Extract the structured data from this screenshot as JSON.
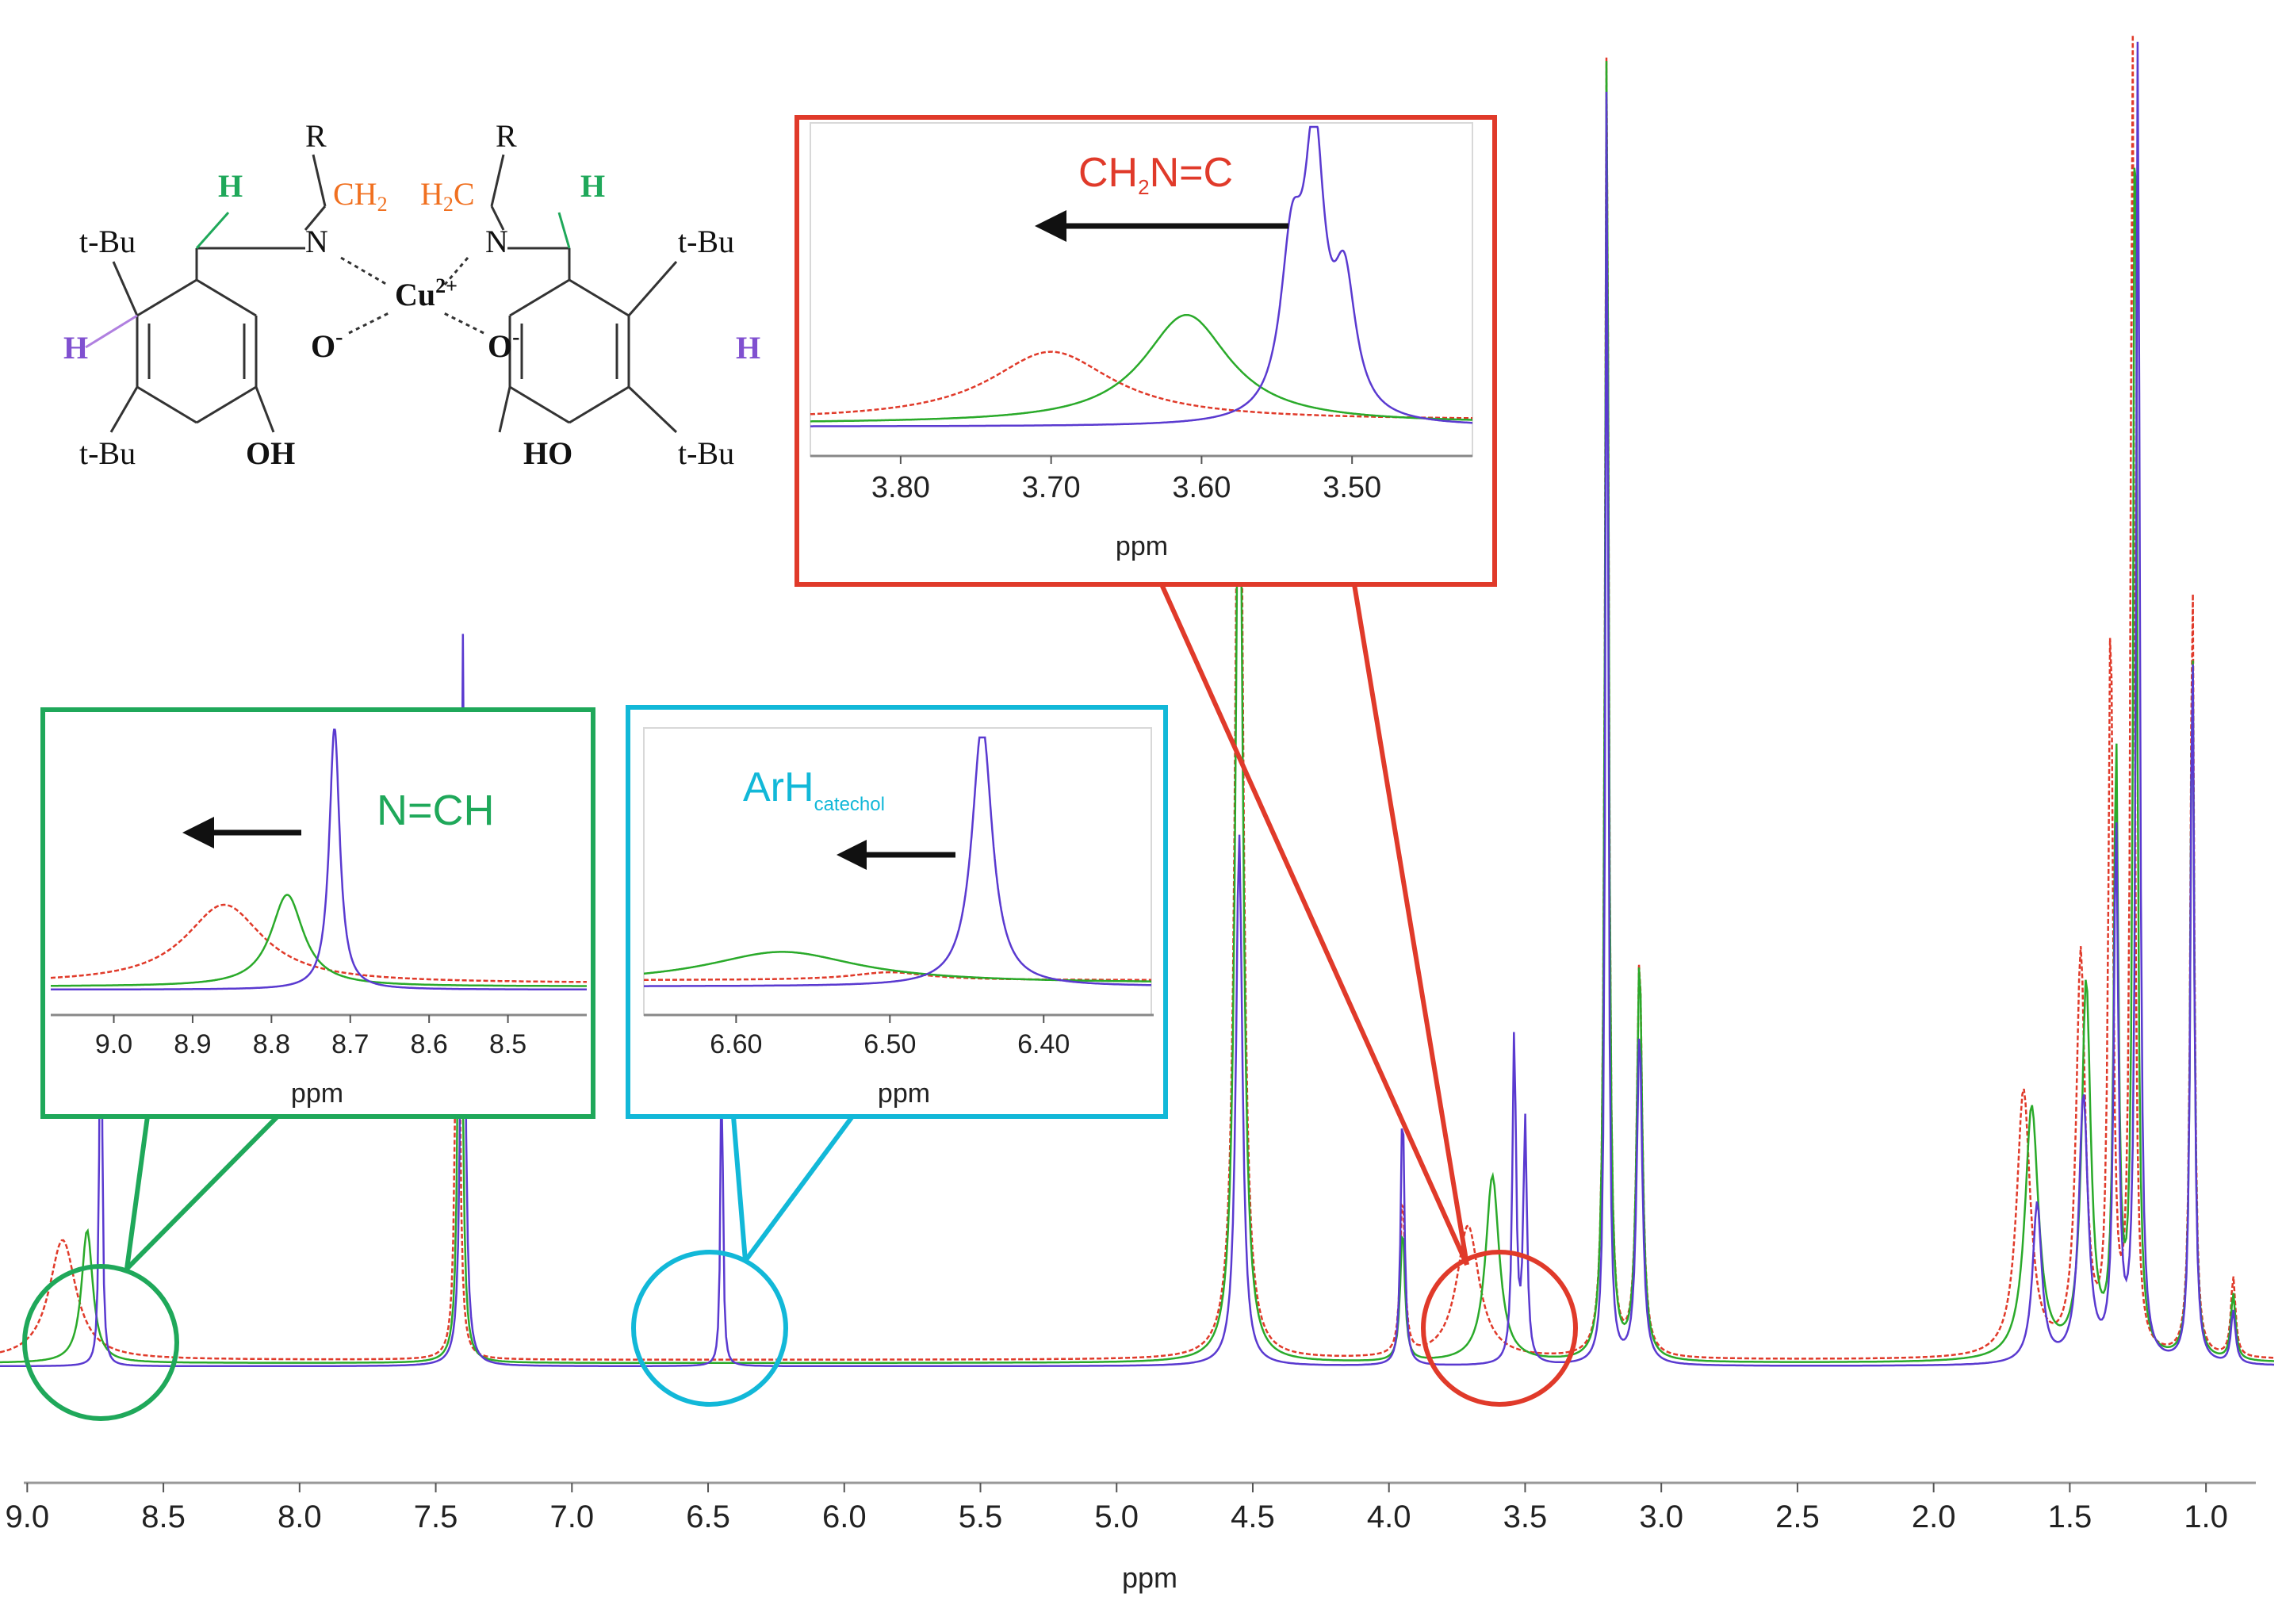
{
  "chart_data": {
    "type": "line",
    "xlabel": "ppm",
    "xlim": [
      9.1,
      0.75
    ],
    "x_ticks": [
      "9.0",
      "8.5",
      "8.0",
      "7.5",
      "7.0",
      "6.5",
      "6.0",
      "5.5",
      "5.0",
      "4.5",
      "4.0",
      "3.5",
      "3.0",
      "2.5",
      "2.0",
      "1.5",
      "1.0"
    ],
    "grid": false,
    "series_colors": [
      "#e03a2a",
      "#2aaa2a",
      "#5a3ad0"
    ],
    "series": [
      {
        "color": "#e03a2a",
        "peaks": [
          [
            8.87,
            0.09,
            0.06
          ],
          [
            7.42,
            0.45,
            0.008
          ],
          [
            4.55,
            0.86,
            0.016
          ],
          [
            3.95,
            0.12,
            0.01
          ],
          [
            3.71,
            0.1,
            0.05
          ],
          [
            3.2,
            1.0,
            0.008
          ],
          [
            3.08,
            0.3,
            0.012
          ],
          [
            1.67,
            0.2,
            0.03
          ],
          [
            1.46,
            0.3,
            0.02
          ],
          [
            1.35,
            0.55,
            0.01
          ],
          [
            1.27,
            1.0,
            0.008
          ],
          [
            1.05,
            0.6,
            0.008
          ],
          [
            0.9,
            0.06,
            0.01
          ]
        ]
      },
      {
        "color": "#2aaa2a",
        "peaks": [
          [
            8.78,
            0.1,
            0.025
          ],
          [
            7.41,
            0.5,
            0.008
          ],
          [
            4.55,
            0.75,
            0.016
          ],
          [
            3.95,
            0.1,
            0.01
          ],
          [
            3.62,
            0.14,
            0.03
          ],
          [
            3.2,
            1.0,
            0.008
          ],
          [
            3.08,
            0.3,
            0.012
          ],
          [
            1.64,
            0.19,
            0.03
          ],
          [
            1.44,
            0.28,
            0.02
          ],
          [
            1.33,
            0.45,
            0.01
          ],
          [
            1.26,
            1.0,
            0.008
          ],
          [
            1.05,
            0.55,
            0.008
          ],
          [
            0.9,
            0.05,
            0.01
          ]
        ]
      },
      {
        "color": "#5a3ad0",
        "peaks": [
          [
            8.73,
            0.4,
            0.005
          ],
          [
            7.4,
            0.55,
            0.008
          ],
          [
            6.45,
            0.25,
            0.005
          ],
          [
            4.55,
            0.4,
            0.014
          ],
          [
            3.95,
            0.2,
            0.008
          ],
          [
            3.54,
            0.25,
            0.008
          ],
          [
            3.5,
            0.18,
            0.008
          ],
          [
            3.2,
            1.0,
            0.006
          ],
          [
            3.08,
            0.25,
            0.012
          ],
          [
            1.62,
            0.12,
            0.02
          ],
          [
            1.45,
            0.2,
            0.02
          ],
          [
            1.33,
            0.4,
            0.01
          ],
          [
            1.25,
            1.0,
            0.008
          ],
          [
            1.05,
            0.55,
            0.008
          ],
          [
            0.9,
            0.04,
            0.01
          ]
        ]
      }
    ],
    "insets": [
      {
        "id": "NCH",
        "label": "N=CH",
        "color": "#1fa85a",
        "xlabel": "ppm",
        "xlim": [
          9.08,
          8.4
        ],
        "ticks": [
          "9.0",
          "8.9",
          "8.8",
          "8.7",
          "8.6",
          "8.5"
        ],
        "series": [
          {
            "color": "#e03a2a",
            "peaks": [
              [
                8.86,
                0.3,
                0.06
              ]
            ]
          },
          {
            "color": "#2aaa2a",
            "peaks": [
              [
                8.78,
                0.35,
                0.025
              ]
            ]
          },
          {
            "color": "#5a3ad0",
            "peaks": [
              [
                8.72,
                1.0,
                0.008
              ]
            ]
          }
        ]
      },
      {
        "id": "ArH",
        "label": "ArH",
        "label_sub": "catechol",
        "color": "#12b8d8",
        "xlabel": "ppm",
        "xlim": [
          6.66,
          6.33
        ],
        "ticks": [
          "6.60",
          "6.50",
          "6.40"
        ],
        "series": [
          {
            "color": "#e03a2a",
            "peaks": [
              [
                6.5,
                0.03,
                0.03
              ]
            ]
          },
          {
            "color": "#2aaa2a",
            "peaks": [
              [
                6.57,
                0.12,
                0.06
              ]
            ]
          },
          {
            "color": "#5a3ad0",
            "peaks": [
              [
                6.44,
                1.0,
                0.008
              ]
            ]
          }
        ]
      },
      {
        "id": "CH2NC",
        "label": "CH",
        "label_sub": "2",
        "label_rest": "N=C",
        "color": "#e03a2a",
        "xlabel": "ppm",
        "xlim": [
          3.86,
          3.42
        ],
        "ticks": [
          "3.80",
          "3.70",
          "3.60",
          "3.50"
        ],
        "series": [
          {
            "color": "#e03a2a",
            "peaks": [
              [
                3.7,
                0.24,
                0.05
              ]
            ]
          },
          {
            "color": "#2aaa2a",
            "peaks": [
              [
                3.61,
                0.38,
                0.035
              ]
            ]
          },
          {
            "color": "#5a3ad0",
            "peaks": [
              [
                3.54,
                0.55,
                0.009
              ],
              [
                3.525,
                0.9,
                0.008
              ],
              [
                3.505,
                0.45,
                0.009
              ]
            ]
          }
        ]
      }
    ]
  },
  "structure": {
    "R_left": "R",
    "R_right": "R",
    "CH2_left": "CH",
    "sub2_left": "2",
    "H2C_right_H": "H",
    "sub2_right": "2",
    "H2C_right_C": "C",
    "H_imine_left": "H",
    "H_imine_right": "H",
    "N_left": "N",
    "N_right": "N",
    "metal": "Cu",
    "metal_charge": "2+",
    "O_left": "O",
    "O_right": "O",
    "minus": "-",
    "tBu_top_left": "t-Bu",
    "tBu_bottom_left": "t-Bu",
    "tBu_top_right": "t-Bu",
    "tBu_bottom_right": "t-Bu",
    "H_aryl_left": "H",
    "H_aryl_right": "H",
    "OH_left": "OH",
    "HO_right": "HO"
  }
}
